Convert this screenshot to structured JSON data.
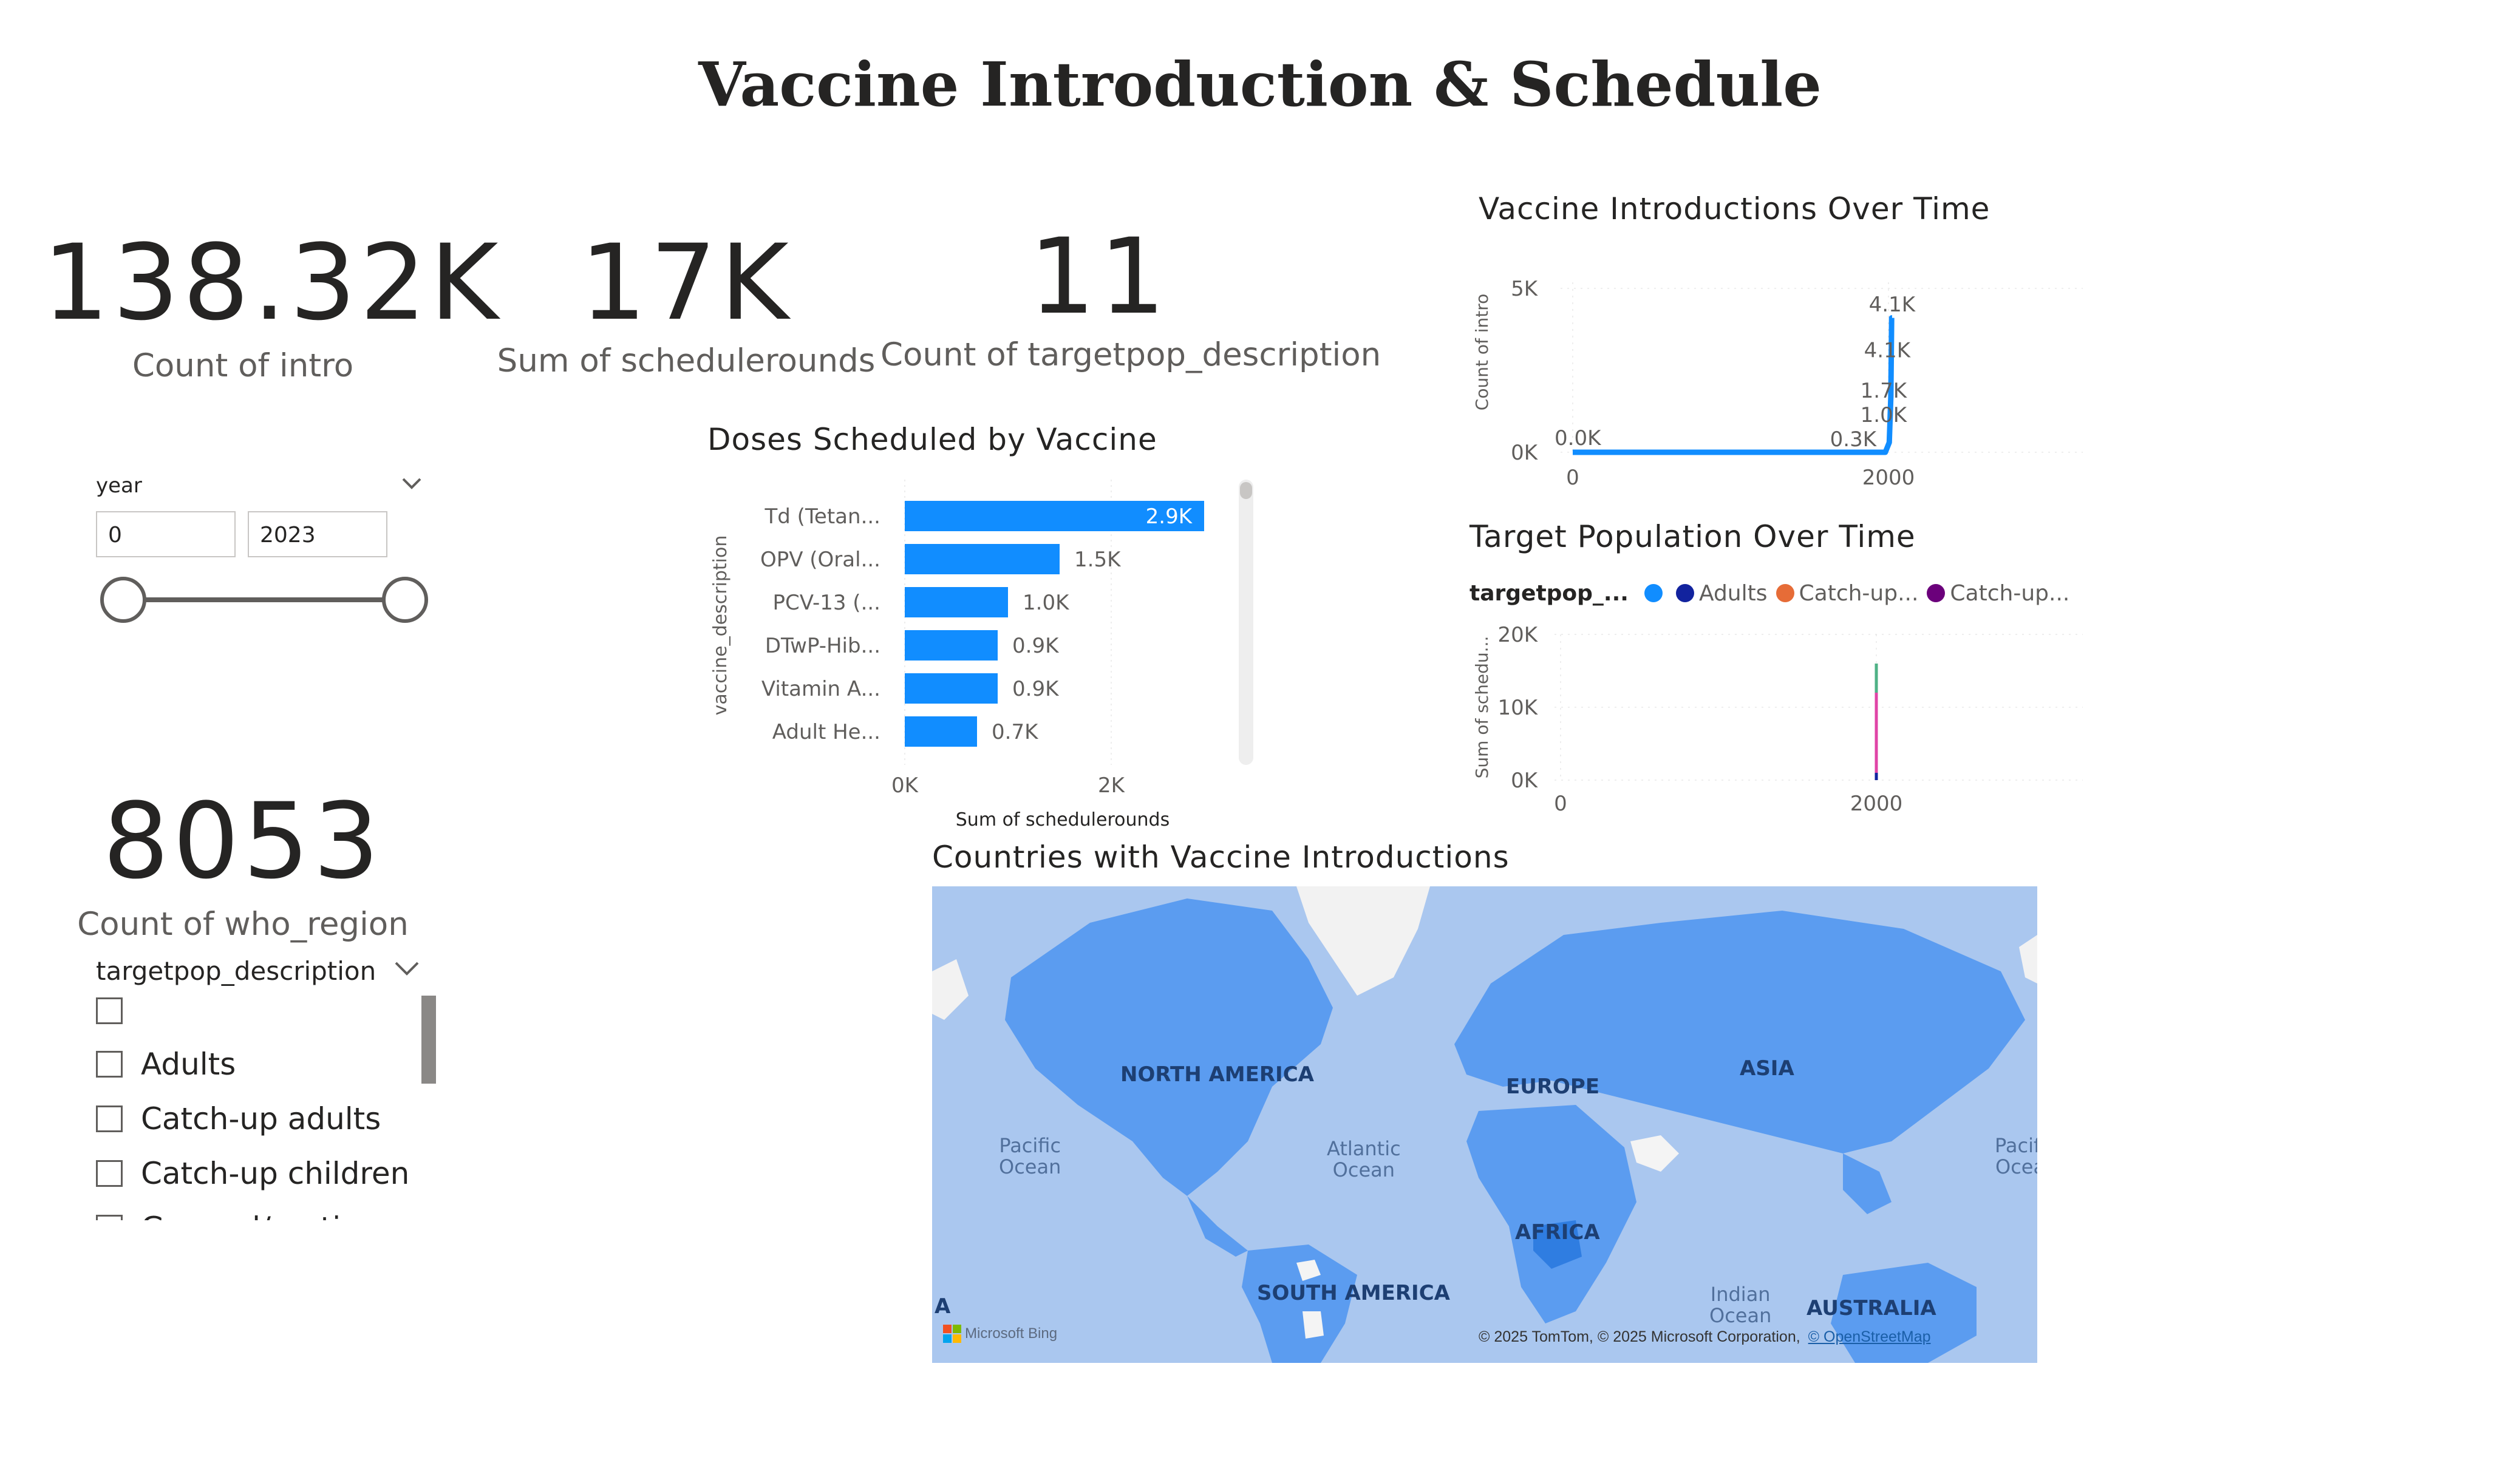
{
  "page": {
    "title": "Vaccine Introduction & Schedule"
  },
  "cards": [
    {
      "value": "138.32K",
      "label": "Count of intro"
    },
    {
      "value": "17K",
      "label": "Sum of schedulerounds"
    },
    {
      "value": "11",
      "label": "Count of targetpop_description"
    },
    {
      "value": "8053",
      "label": "Count of who_region"
    }
  ],
  "year_slicer": {
    "header": "year",
    "min": "0",
    "max": "2023",
    "range_fraction": [
      0.0,
      1.0
    ]
  },
  "targetpop_slicer": {
    "header": "targetpop_description",
    "items": [
      "",
      "Adults",
      "Catch-up adults",
      "Catch-up children"
    ],
    "partial_item": "General/routine"
  },
  "doses_chart": {
    "title": "Doses Scheduled by Vaccine",
    "xlabel": "Sum of schedulerounds",
    "ylabel": "vaccine_description",
    "tick_labels": [
      "0K",
      "2K"
    ]
  },
  "intro_chart": {
    "title": "Vaccine Introductions Over Time",
    "ylabel": "Count of intro",
    "y_ticks": [
      "5K",
      "0K"
    ],
    "x_ticks": [
      "0",
      "2000"
    ],
    "data_labels": [
      "0.0K",
      "0.3K",
      "1.0K",
      "1.7K",
      "4.1K",
      "4.1K"
    ]
  },
  "target_chart": {
    "title": "Target Population Over Time",
    "legend_title": "targetpop_...",
    "legend": [
      {
        "name": "",
        "color": "#118dff"
      },
      {
        "name": "Adults",
        "color": "#12239e"
      },
      {
        "name": "Catch-up...",
        "color": "#e66c37"
      },
      {
        "name": "Catch-up...",
        "color": "#6b007b"
      }
    ],
    "ylabel": "Sum of schedu...",
    "y_ticks": [
      "20K",
      "10K",
      "0K"
    ],
    "x_ticks": [
      "0",
      "2000"
    ]
  },
  "map": {
    "title": "Countries with Vaccine Introductions",
    "continents": [
      "NORTH AMERICA",
      "EUROPE",
      "ASIA",
      "AFRICA",
      "SOUTH AMERICA",
      "AUSTRALIA"
    ],
    "oceans": [
      "Pacific\nOcean",
      "Atlantic\nOcean",
      "Indian\nOcean",
      "Pacifi\nOcea"
    ],
    "copyright": "© 2025 TomTom, © 2025 Microsoft Corporation,",
    "osm": "© OpenStreetMap",
    "bing": "Microsoft Bing",
    "edge_letter": "A"
  },
  "chart_data": [
    {
      "type": "bar",
      "title": "Doses Scheduled by Vaccine",
      "categories": [
        "Td (Tetan...",
        "OPV (Oral...",
        "PCV-13 (...",
        "DTwP-Hib...",
        "Vitamin A...",
        "Adult He..."
      ],
      "values": [
        2.9,
        1.5,
        1.0,
        0.9,
        0.9,
        0.7
      ],
      "value_labels": [
        "2.9K",
        "1.5K",
        "1.0K",
        "0.9K",
        "0.9K",
        "0.7K"
      ],
      "xlabel": "Sum of schedulerounds",
      "ylabel": "vaccine_description",
      "xlim": [
        0,
        4
      ],
      "unit": "K",
      "color": "#118dff"
    },
    {
      "type": "line",
      "title": "Vaccine Introductions Over Time",
      "x": [
        0,
        1980,
        2005,
        2010,
        2015,
        2020,
        2023
      ],
      "y": [
        0.0,
        0.0,
        0.3,
        1.0,
        1.7,
        4.1,
        4.1
      ],
      "ylabel": "Count of intro",
      "xlim": [
        0,
        3000
      ],
      "ylim": [
        0,
        5
      ],
      "unit": "K",
      "color": "#118dff"
    },
    {
      "type": "line",
      "title": "Target Population Over Time",
      "x": [
        2000
      ],
      "series": [
        {
          "name": "",
          "values": [
            16
          ]
        },
        {
          "name": "Adults",
          "values": [
            0
          ]
        },
        {
          "name": "Catch-up...",
          "values": [
            0
          ]
        },
        {
          "name": "Catch-up...",
          "values": [
            0
          ]
        }
      ],
      "ylabel": "Sum of schedu...",
      "xlim": [
        0,
        3000
      ],
      "ylim": [
        0,
        20
      ],
      "unit": "K"
    }
  ]
}
